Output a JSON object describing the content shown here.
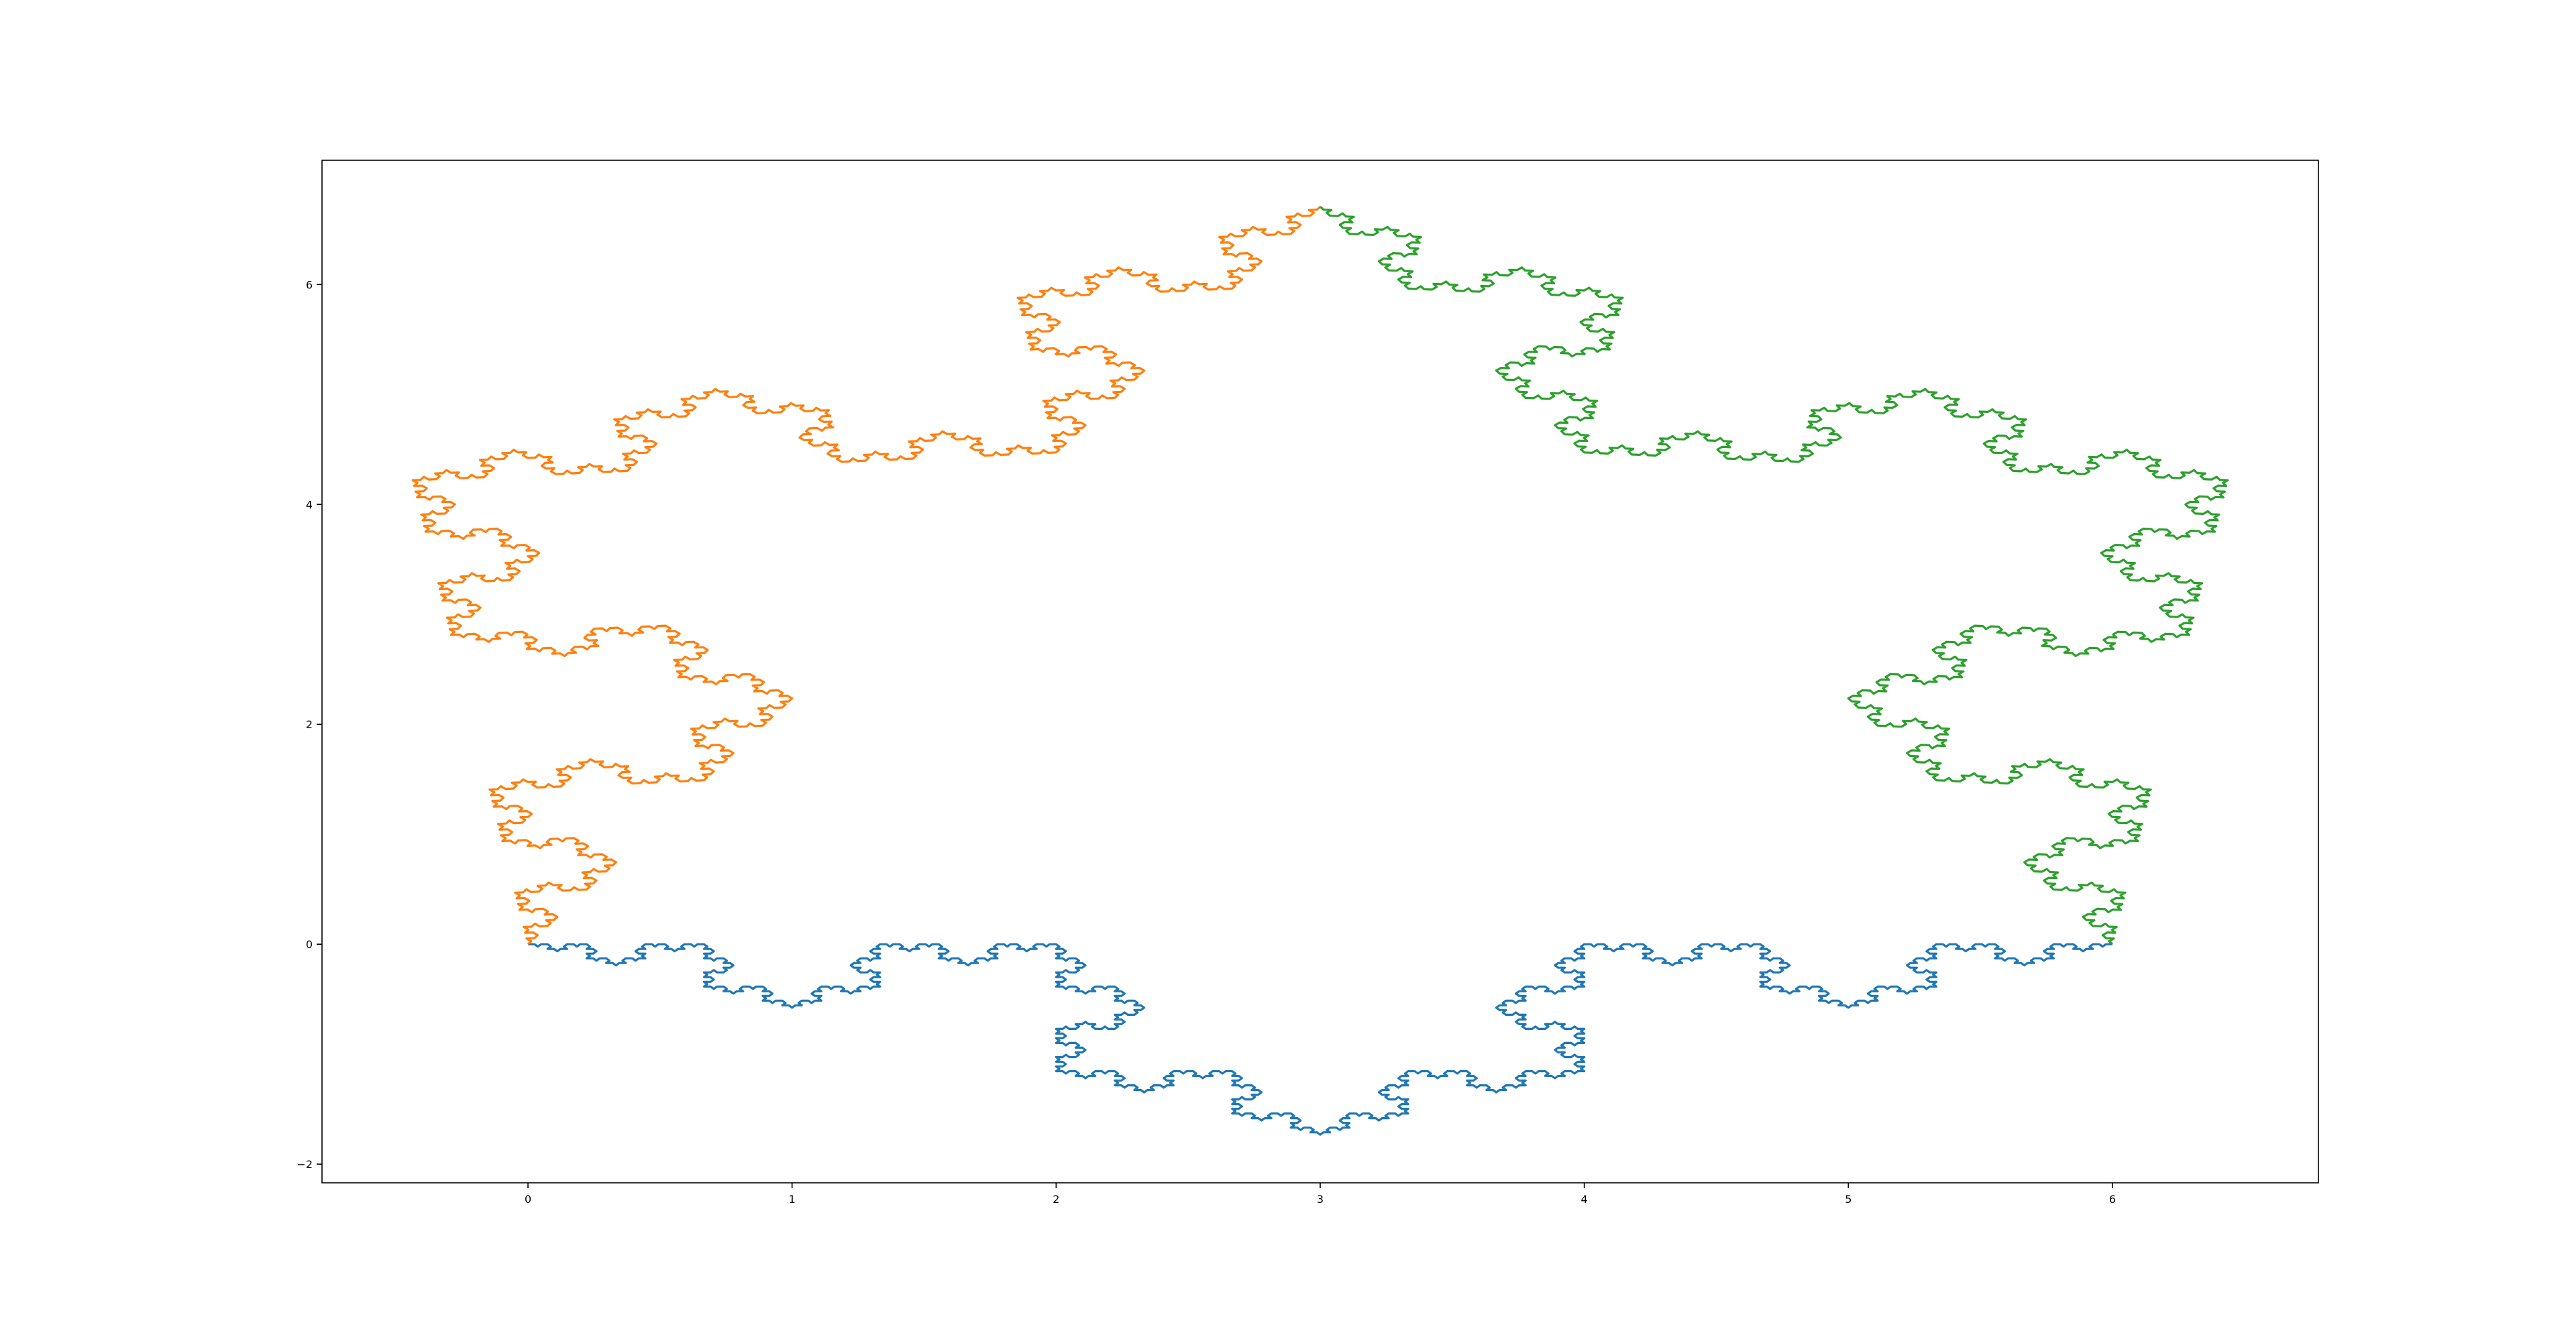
{
  "chart_data": {
    "type": "line",
    "title": "",
    "xlabel": "",
    "ylabel": "",
    "xlim": [
      -0.78,
      6.78
    ],
    "ylim": [
      -2.17,
      7.13
    ],
    "x_ticks": [
      0,
      1,
      2,
      3,
      4,
      5,
      6
    ],
    "x_tick_labels": [
      "0",
      "1",
      "2",
      "3",
      "4",
      "5",
      "6"
    ],
    "y_ticks": [
      -2,
      0,
      2,
      4,
      6
    ],
    "y_tick_labels": [
      "−2",
      "0",
      "2",
      "4",
      "6"
    ],
    "grid": false,
    "legend": "none",
    "curve": "Koch snowflake",
    "iterations": 5,
    "series": [
      {
        "color": "#1f77b4",
        "start": [
          0,
          0
        ],
        "end": [
          6,
          0
        ]
      },
      {
        "color": "#ff7f0e",
        "start": [
          3,
          6.7082
        ],
        "end": [
          0,
          0
        ]
      },
      {
        "color": "#2ca02c",
        "start": [
          6,
          0
        ],
        "end": [
          3,
          6.7082
        ]
      }
    ]
  }
}
